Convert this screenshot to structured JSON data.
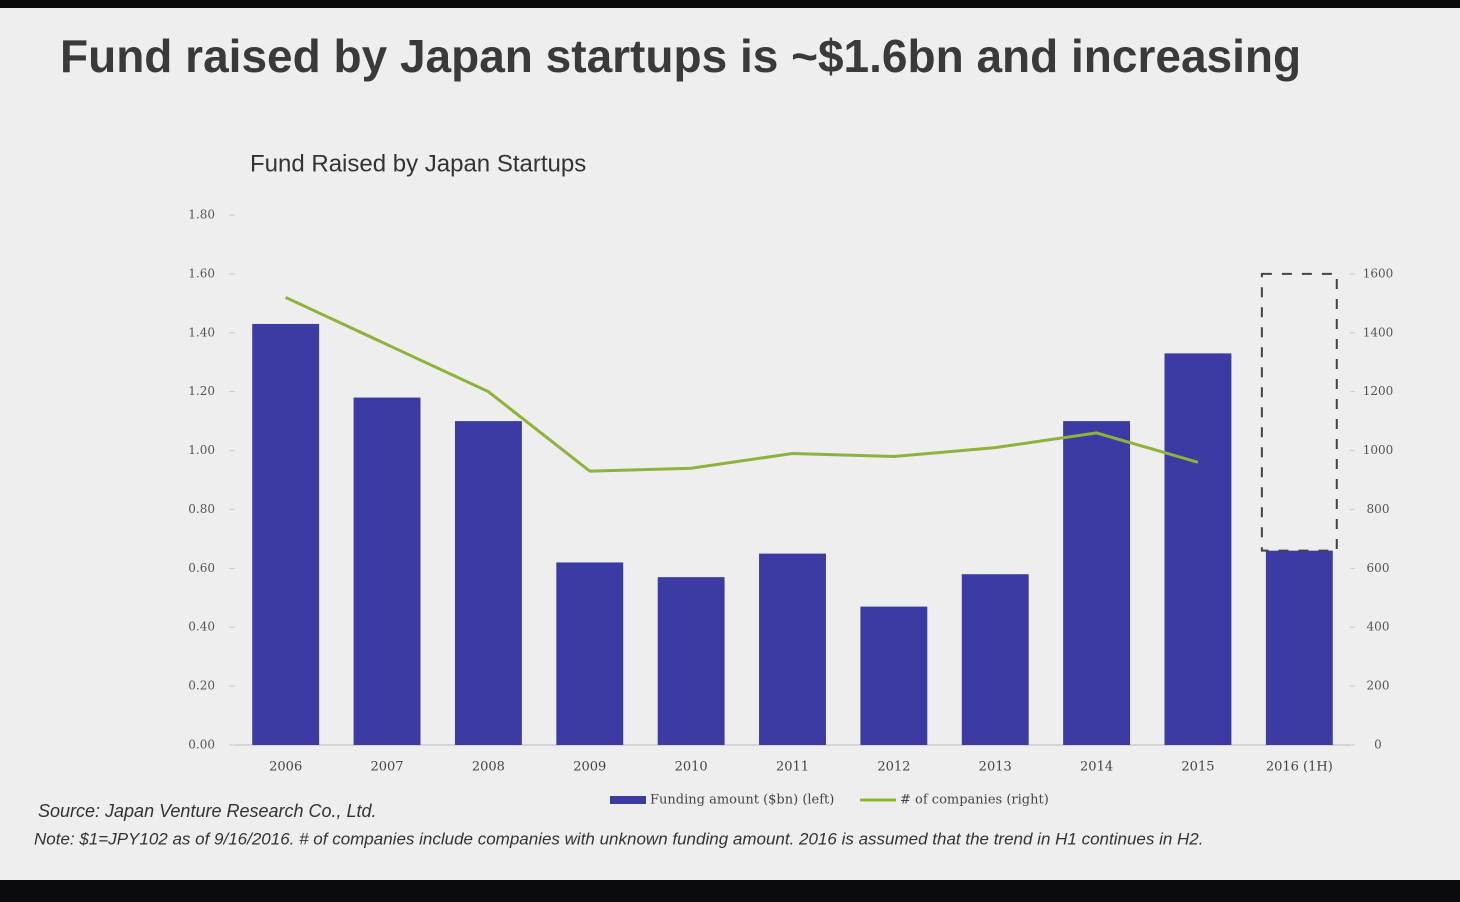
{
  "headline": "Fund raised by Japan startups is ~$1.6bn and increasing",
  "chart_data": {
    "type": "bar",
    "title": "Fund Raised by Japan Startups",
    "categories": [
      "2006",
      "2007",
      "2008",
      "2009",
      "2010",
      "2011",
      "2012",
      "2013",
      "2014",
      "2015",
      "2016 (1H)"
    ],
    "series": [
      {
        "name": "Funding amount ($bn) (left)",
        "type": "bar",
        "color": "#3b3ba3",
        "values": [
          1.43,
          1.18,
          1.1,
          0.62,
          0.57,
          0.65,
          0.47,
          0.58,
          1.1,
          1.33,
          0.66
        ]
      },
      {
        "name": "# of companies (right)",
        "type": "line",
        "axis": "y2",
        "color": "#8db33a",
        "values": [
          1520,
          1360,
          1200,
          930,
          940,
          990,
          980,
          1010,
          1060,
          960,
          null
        ]
      }
    ],
    "ylim": [
      0,
      1.8
    ],
    "yticks": [
      {
        "value": 0,
        "label": "0.00"
      },
      {
        "value": 0.2,
        "label": "0.20"
      },
      {
        "value": 0.4,
        "label": "0.40"
      },
      {
        "value": 0.6,
        "label": "0.60"
      },
      {
        "value": 0.8,
        "label": "0.80"
      },
      {
        "value": 1,
        "label": "1.00"
      },
      {
        "value": 1.2,
        "label": "1.20"
      },
      {
        "value": 1.4,
        "label": "1.40"
      },
      {
        "value": 1.6,
        "label": "1.60"
      },
      {
        "value": 1.8,
        "label": "1.80"
      }
    ],
    "y2lim": [
      0,
      1800
    ],
    "y2ticks": [
      0,
      200,
      400,
      600,
      800,
      1000,
      1200,
      1400,
      1600
    ],
    "grid": false
  },
  "source": "Source: Japan Venture Research Co., Ltd.",
  "note": "Note: $1=JPY102 as of 9/16/2016. # of companies include companies with unknown funding amount. 2016 is assumed that the trend in H1 continues in H2."
}
